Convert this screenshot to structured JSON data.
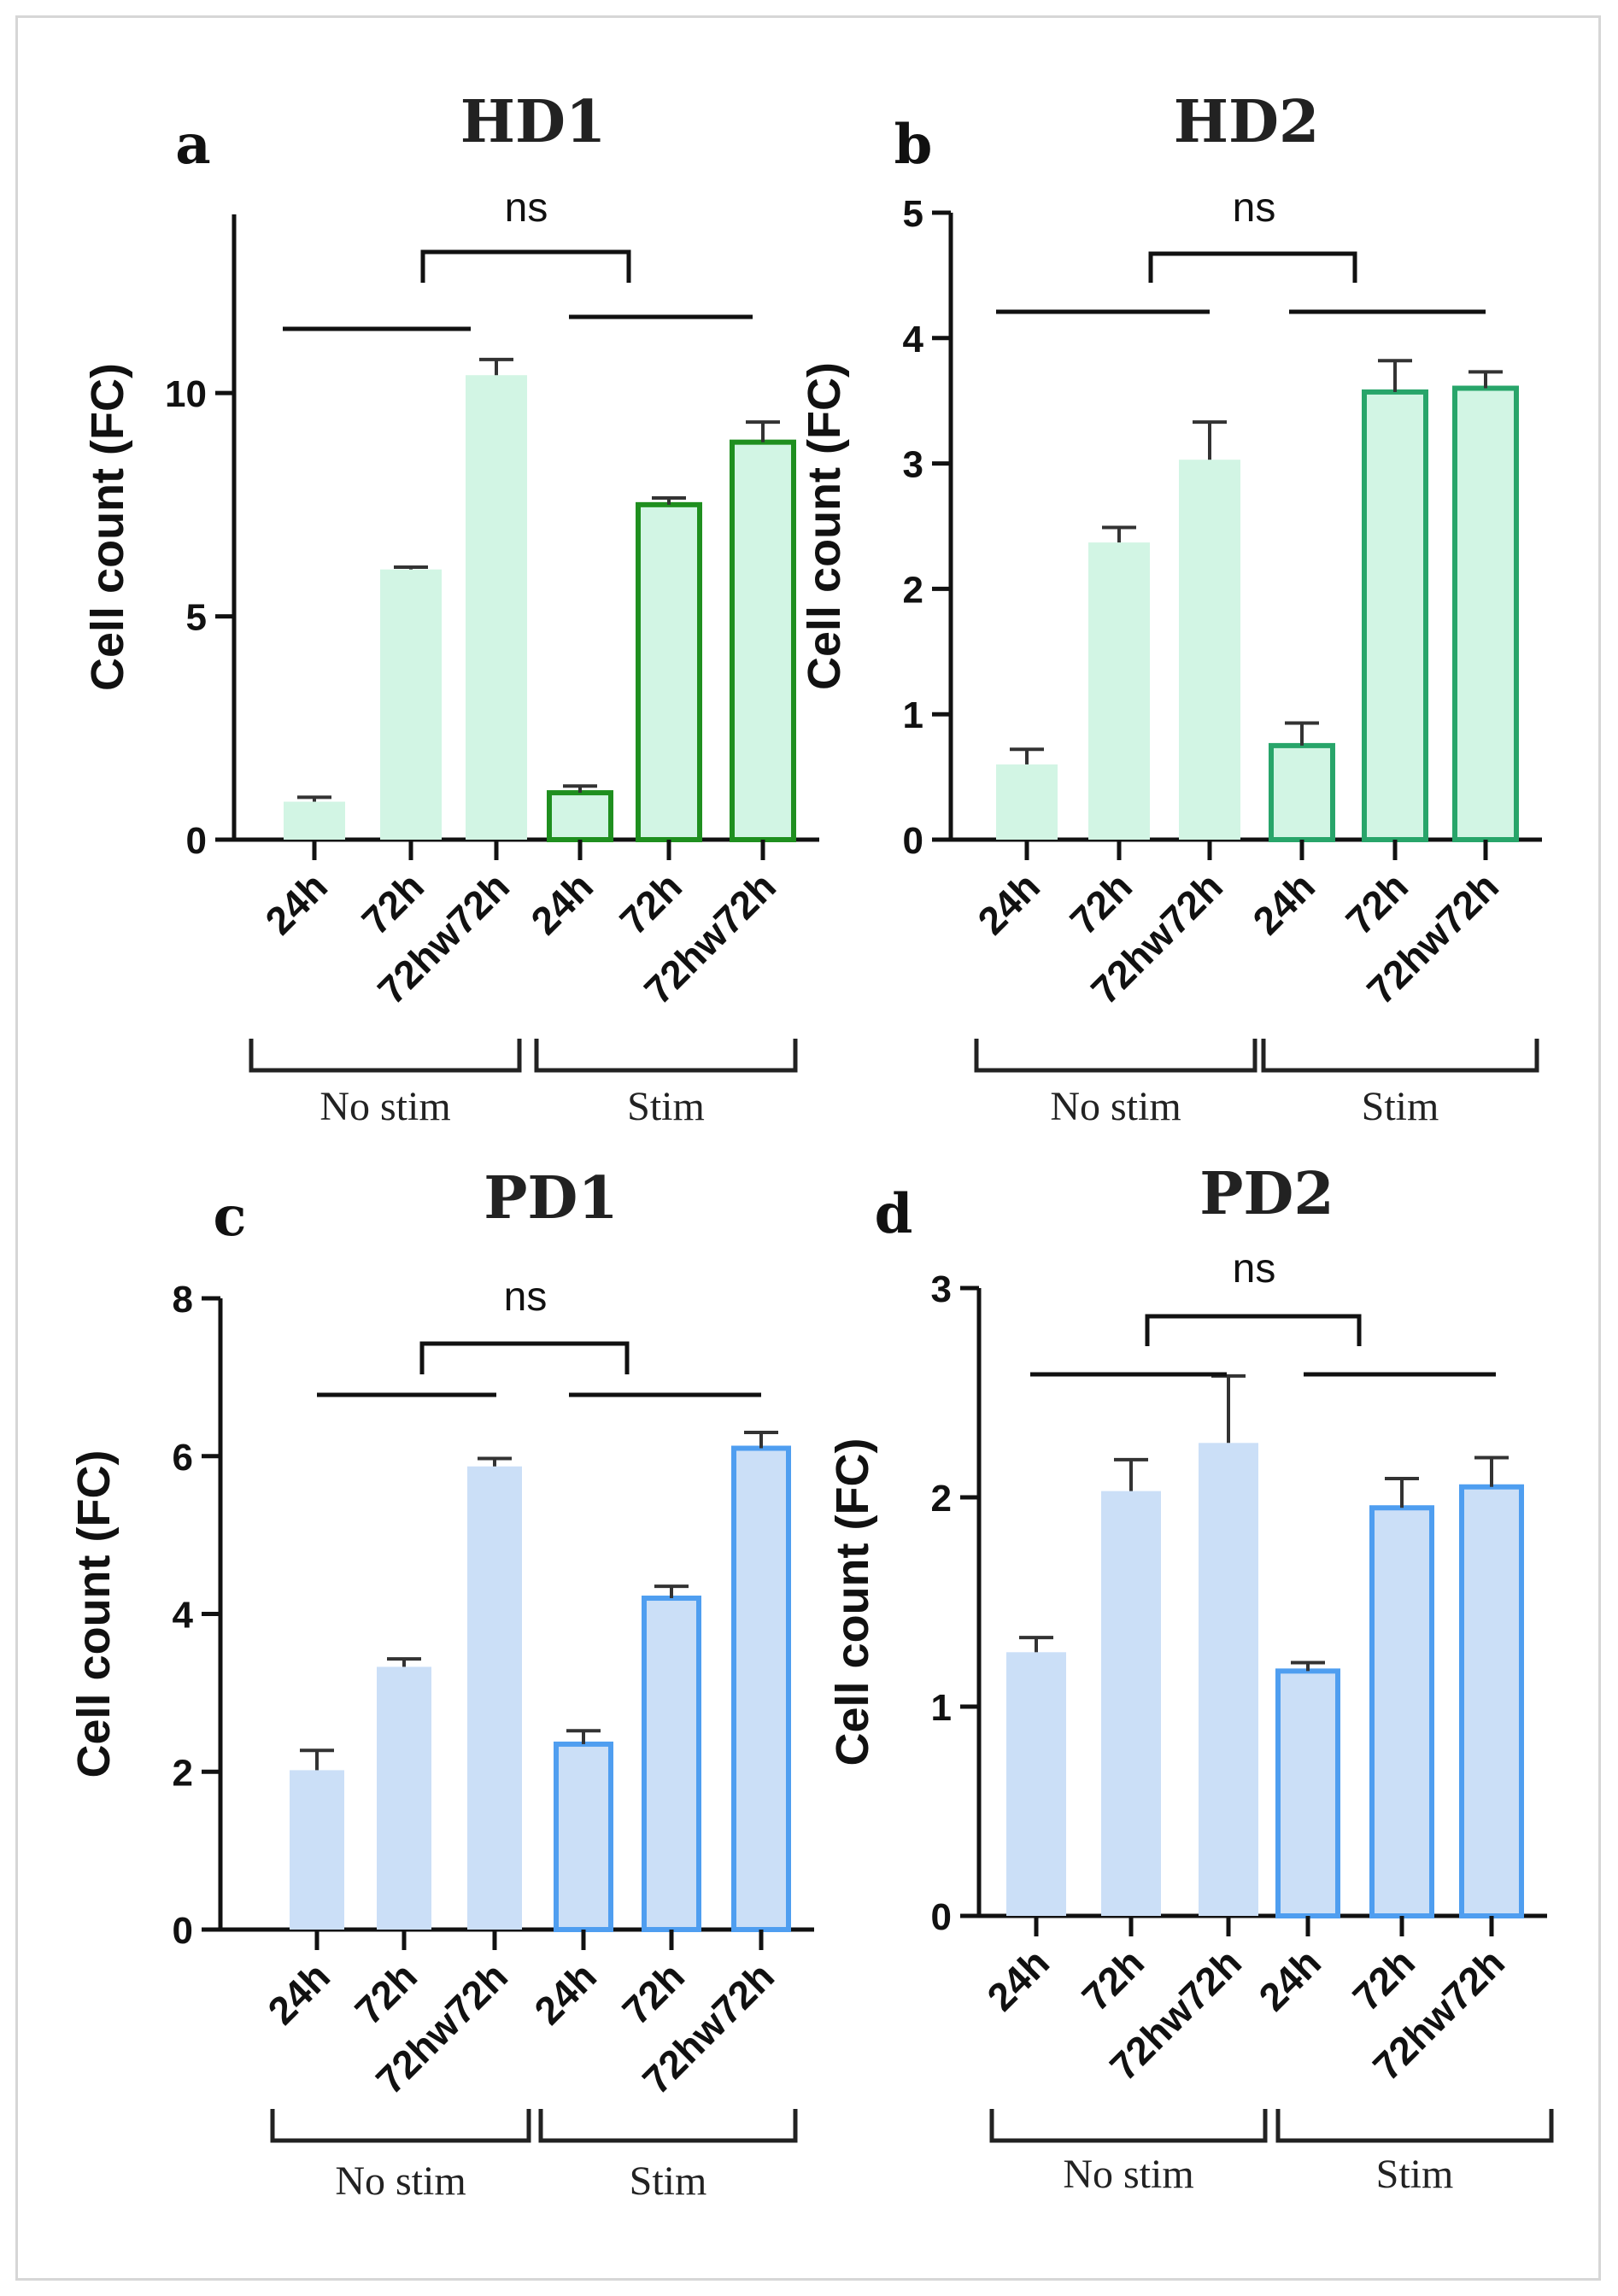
{
  "figure": {
    "chart_data": [
      {
        "type": "bar",
        "letter": "a",
        "title": "HD1",
        "ylabel": "Cell count (FC)",
        "ylim": [
          0,
          14
        ],
        "yticks": [
          0,
          5,
          10
        ],
        "categories": [
          "24h",
          "72h",
          "72hw72h",
          "24h",
          "72h",
          "72hw72h"
        ],
        "groups": [
          {
            "name": "No stim",
            "start": 0,
            "end": 2
          },
          {
            "name": "Stim",
            "start": 3,
            "end": 5
          }
        ],
        "values": [
          0.85,
          6.05,
          10.4,
          1.05,
          7.5,
          8.9
        ],
        "errors": [
          0.1,
          0.05,
          0.35,
          0.15,
          0.15,
          0.45
        ],
        "significance": "ns",
        "colors": {
          "fill": "#d2f5e4",
          "stim_stroke": "#1f8f1f"
        }
      },
      {
        "type": "bar",
        "letter": "b",
        "title": "HD2",
        "ylabel": "Cell count (FC)",
        "ylim": [
          0,
          5
        ],
        "yticks": [
          0,
          1,
          2,
          3,
          4,
          5
        ],
        "categories": [
          "24h",
          "72h",
          "72hw72h",
          "24h",
          "72h",
          "72hw72h"
        ],
        "groups": [
          {
            "name": "No stim",
            "start": 0,
            "end": 2
          },
          {
            "name": "Stim",
            "start": 3,
            "end": 5
          }
        ],
        "values": [
          0.6,
          2.37,
          3.03,
          0.75,
          3.57,
          3.6
        ],
        "errors": [
          0.12,
          0.12,
          0.3,
          0.18,
          0.25,
          0.13
        ],
        "significance": "ns",
        "colors": {
          "fill": "#d2f5e4",
          "stim_stroke": "#28a56a"
        }
      },
      {
        "type": "bar",
        "letter": "c",
        "title": "PD1",
        "ylabel": "Cell count (FC)",
        "ylim": [
          0,
          8
        ],
        "yticks": [
          0,
          2,
          4,
          6,
          8
        ],
        "categories": [
          "24h",
          "72h",
          "72hw72h",
          "24h",
          "72h",
          "72hw72h"
        ],
        "groups": [
          {
            "name": "No stim",
            "start": 0,
            "end": 2
          },
          {
            "name": "Stim",
            "start": 3,
            "end": 5
          }
        ],
        "values": [
          2.02,
          3.33,
          5.87,
          2.35,
          4.2,
          6.1
        ],
        "errors": [
          0.25,
          0.1,
          0.1,
          0.17,
          0.15,
          0.2
        ],
        "significance": "ns",
        "colors": {
          "fill": "#cbdff7",
          "stim_stroke": "#4f9ef0"
        }
      },
      {
        "type": "bar",
        "letter": "d",
        "title": "PD2",
        "ylabel": "Cell count (FC)",
        "ylim": [
          0,
          3
        ],
        "yticks": [
          0,
          1,
          2,
          3
        ],
        "categories": [
          "24h",
          "72h",
          "72hw72h",
          "24h",
          "72h",
          "72hw72h"
        ],
        "groups": [
          {
            "name": "No stim",
            "start": 0,
            "end": 2
          },
          {
            "name": "Stim",
            "start": 3,
            "end": 5
          }
        ],
        "values": [
          1.26,
          2.03,
          2.26,
          1.17,
          1.95,
          2.05
        ],
        "errors": [
          0.07,
          0.15,
          0.32,
          0.04,
          0.14,
          0.14
        ],
        "significance": "ns",
        "colors": {
          "fill": "#cbdff7",
          "stim_stroke": "#4f9ef0"
        }
      }
    ]
  }
}
